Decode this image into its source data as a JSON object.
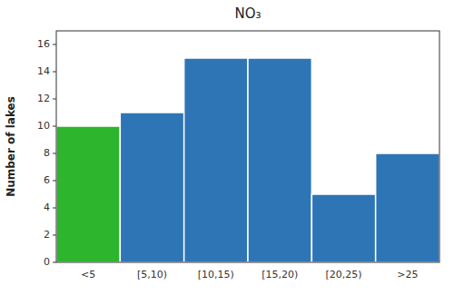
{
  "chart_data": {
    "type": "bar",
    "title": "NO₃",
    "categories": [
      "<5",
      "[5,10)",
      "[10,15)",
      "[15,20)",
      "[20,25)",
      ">25"
    ],
    "values": [
      10,
      11,
      15,
      15,
      5,
      8
    ],
    "colors": [
      "#2db52d",
      "#2e75b6",
      "#2e75b6",
      "#2e75b6",
      "#2e75b6",
      "#2e75b6"
    ],
    "ylabel": "Number of lakes",
    "ylim": [
      0,
      17
    ],
    "yticks": [
      0,
      2,
      4,
      6,
      8,
      10,
      12,
      14,
      16
    ],
    "grid": false
  }
}
